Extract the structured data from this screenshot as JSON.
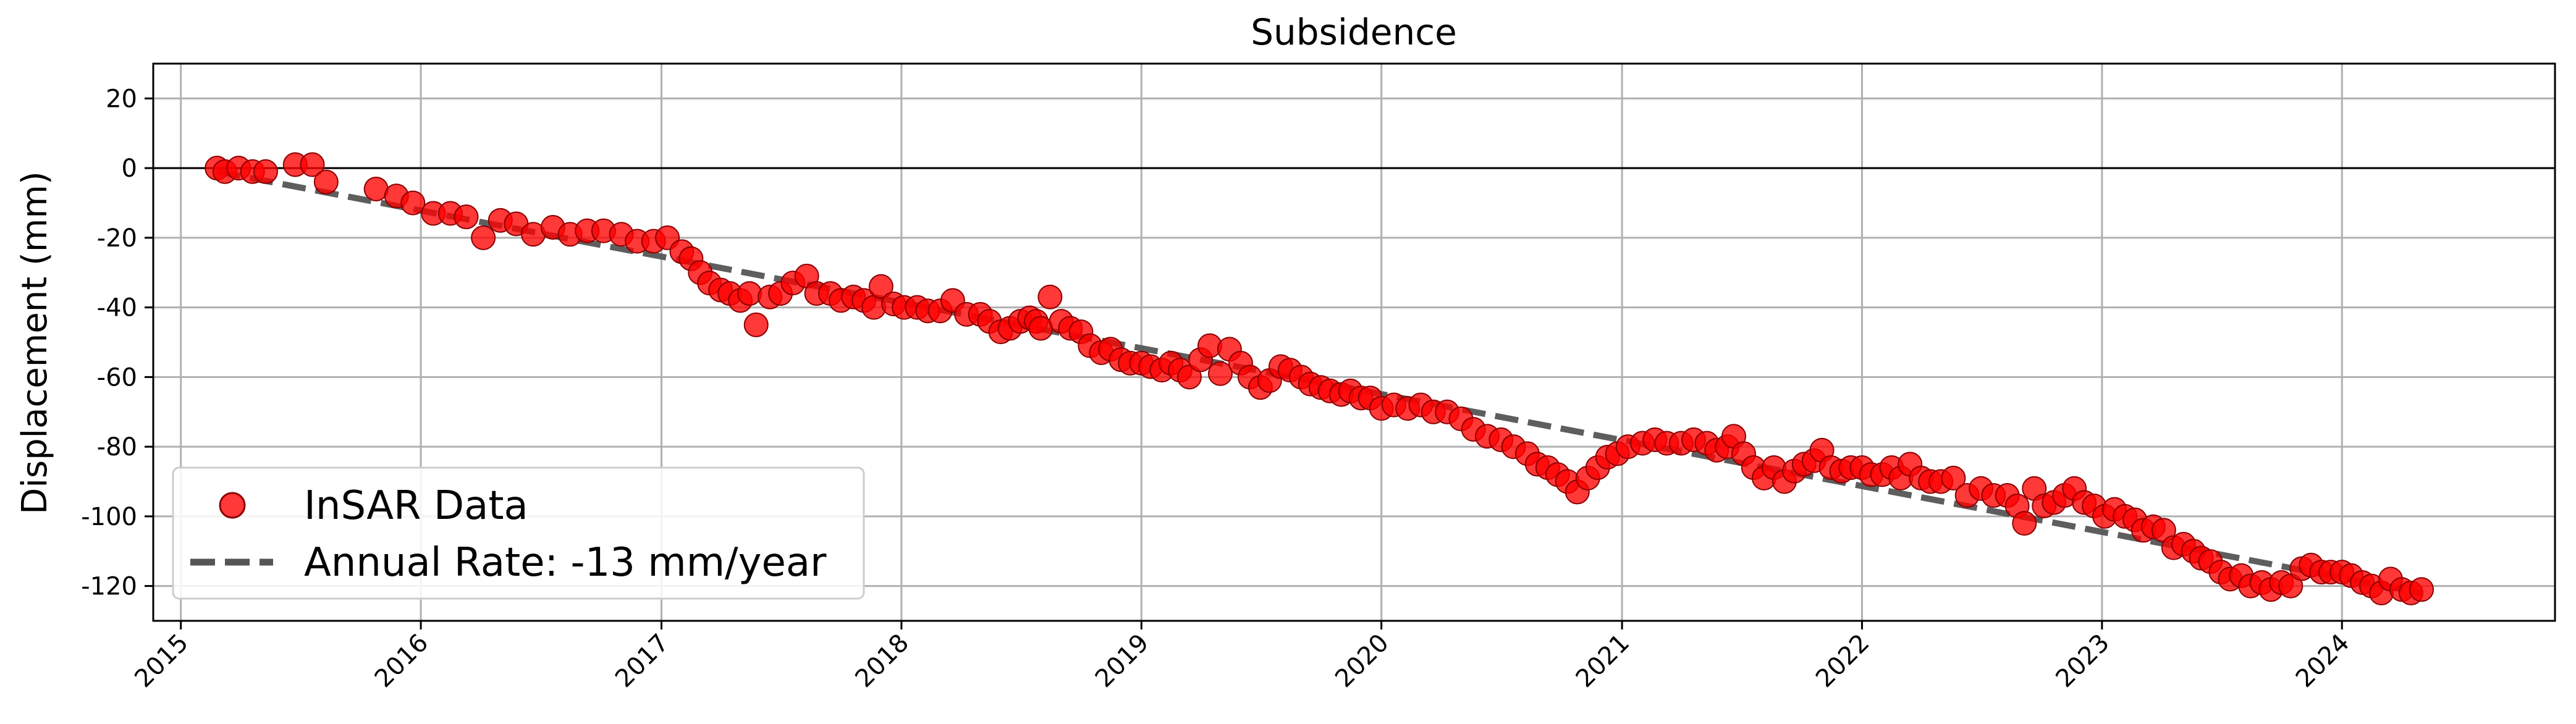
{
  "chart_data": {
    "type": "scatter",
    "title": "Subsidence",
    "xlabel": "",
    "ylabel": "Displacement (mm)",
    "x_type": "date",
    "xlim": [
      "2014-11-20",
      "2024-11-20"
    ],
    "ylim": [
      -130,
      30
    ],
    "x_ticks": [
      "2015",
      "2016",
      "2017",
      "2018",
      "2019",
      "2020",
      "2021",
      "2022",
      "2023",
      "2024"
    ],
    "y_ticks": [
      20,
      0,
      -20,
      -40,
      -60,
      -80,
      -100,
      -120
    ],
    "grid": true,
    "zero_line": true,
    "legend_position": "lower-left",
    "colors": {
      "points": "#ff0000",
      "point_edge": "#8b0000",
      "trend": "#555555",
      "grid": "#b0b0b0"
    },
    "series": [
      {
        "name": "InSAR Data",
        "kind": "scatter",
        "points": [
          [
            "2015-02-25",
            0
          ],
          [
            "2015-03-09",
            -1
          ],
          [
            "2015-03-30",
            0
          ],
          [
            "2015-04-20",
            -1
          ],
          [
            "2015-05-10",
            -1
          ],
          [
            "2015-06-24",
            1
          ],
          [
            "2015-07-20",
            1
          ],
          [
            "2015-08-10",
            -4
          ],
          [
            "2015-10-25",
            -6
          ],
          [
            "2015-11-25",
            -8
          ],
          [
            "2015-12-20",
            -10
          ],
          [
            "2016-01-20",
            -13
          ],
          [
            "2016-02-15",
            -13
          ],
          [
            "2016-03-10",
            -14
          ],
          [
            "2016-04-05",
            -20
          ],
          [
            "2016-05-01",
            -15
          ],
          [
            "2016-05-25",
            -16
          ],
          [
            "2016-06-20",
            -19
          ],
          [
            "2016-07-20",
            -17
          ],
          [
            "2016-08-15",
            -19
          ],
          [
            "2016-09-10",
            -18
          ],
          [
            "2016-10-05",
            -18
          ],
          [
            "2016-11-01",
            -19
          ],
          [
            "2016-11-25",
            -21
          ],
          [
            "2016-12-20",
            -21
          ],
          [
            "2017-01-10",
            -20
          ],
          [
            "2017-02-01",
            -24
          ],
          [
            "2017-02-15",
            -26
          ],
          [
            "2017-03-01",
            -30
          ],
          [
            "2017-03-15",
            -33
          ],
          [
            "2017-04-01",
            -35
          ],
          [
            "2017-04-15",
            -36
          ],
          [
            "2017-05-01",
            -38
          ],
          [
            "2017-05-15",
            -36
          ],
          [
            "2017-05-25",
            -45
          ],
          [
            "2017-06-15",
            -37
          ],
          [
            "2017-07-01",
            -36
          ],
          [
            "2017-07-20",
            -33
          ],
          [
            "2017-08-10",
            -31
          ],
          [
            "2017-08-25",
            -36
          ],
          [
            "2017-09-15",
            -36
          ],
          [
            "2017-10-01",
            -38
          ],
          [
            "2017-10-20",
            -37
          ],
          [
            "2017-11-05",
            -38
          ],
          [
            "2017-11-20",
            -40
          ],
          [
            "2017-12-01",
            -34
          ],
          [
            "2017-12-20",
            -39
          ],
          [
            "2018-01-05",
            -40
          ],
          [
            "2018-01-25",
            -40
          ],
          [
            "2018-02-10",
            -41
          ],
          [
            "2018-03-01",
            -41
          ],
          [
            "2018-03-20",
            -38
          ],
          [
            "2018-04-10",
            -42
          ],
          [
            "2018-05-01",
            -42
          ],
          [
            "2018-05-15",
            -44
          ],
          [
            "2018-06-01",
            -47
          ],
          [
            "2018-06-15",
            -46
          ],
          [
            "2018-07-01",
            -44
          ],
          [
            "2018-07-15",
            -43
          ],
          [
            "2018-07-25",
            -44
          ],
          [
            "2018-08-01",
            -46
          ],
          [
            "2018-08-15",
            -37
          ],
          [
            "2018-09-01",
            -44
          ],
          [
            "2018-09-15",
            -46
          ],
          [
            "2018-10-01",
            -47
          ],
          [
            "2018-10-15",
            -51
          ],
          [
            "2018-11-01",
            -53
          ],
          [
            "2018-11-15",
            -52
          ],
          [
            "2018-12-01",
            -55
          ],
          [
            "2018-12-15",
            -56
          ],
          [
            "2019-01-01",
            -56
          ],
          [
            "2019-01-15",
            -57
          ],
          [
            "2019-02-01",
            -58
          ],
          [
            "2019-02-15",
            -56
          ],
          [
            "2019-03-01",
            -58
          ],
          [
            "2019-03-15",
            -60
          ],
          [
            "2019-04-01",
            -55
          ],
          [
            "2019-04-15",
            -51
          ],
          [
            "2019-05-01",
            -59
          ],
          [
            "2019-05-15",
            -52
          ],
          [
            "2019-06-01",
            -56
          ],
          [
            "2019-06-15",
            -60
          ],
          [
            "2019-07-01",
            -63
          ],
          [
            "2019-07-15",
            -61
          ],
          [
            "2019-08-01",
            -57
          ],
          [
            "2019-08-15",
            -58
          ],
          [
            "2019-09-01",
            -60
          ],
          [
            "2019-09-15",
            -62
          ],
          [
            "2019-10-01",
            -63
          ],
          [
            "2019-10-15",
            -64
          ],
          [
            "2019-11-01",
            -65
          ],
          [
            "2019-11-15",
            -64
          ],
          [
            "2019-12-01",
            -66
          ],
          [
            "2019-12-15",
            -66
          ],
          [
            "2020-01-01",
            -69
          ],
          [
            "2020-01-20",
            -68
          ],
          [
            "2020-02-10",
            -69
          ],
          [
            "2020-03-01",
            -68
          ],
          [
            "2020-03-20",
            -70
          ],
          [
            "2020-04-10",
            -70
          ],
          [
            "2020-05-01",
            -72
          ],
          [
            "2020-05-20",
            -75
          ],
          [
            "2020-06-10",
            -77
          ],
          [
            "2020-07-01",
            -78
          ],
          [
            "2020-07-20",
            -80
          ],
          [
            "2020-08-10",
            -82
          ],
          [
            "2020-08-25",
            -85
          ],
          [
            "2020-09-10",
            -86
          ],
          [
            "2020-09-25",
            -88
          ],
          [
            "2020-10-10",
            -90
          ],
          [
            "2020-10-25",
            -93
          ],
          [
            "2020-11-10",
            -89
          ],
          [
            "2020-11-25",
            -86
          ],
          [
            "2020-12-10",
            -83
          ],
          [
            "2020-12-25",
            -82
          ],
          [
            "2021-01-10",
            -80
          ],
          [
            "2021-02-01",
            -79
          ],
          [
            "2021-02-20",
            -78
          ],
          [
            "2021-03-10",
            -79
          ],
          [
            "2021-04-01",
            -79
          ],
          [
            "2021-04-20",
            -78
          ],
          [
            "2021-05-10",
            -79
          ],
          [
            "2021-05-25",
            -81
          ],
          [
            "2021-06-10",
            -80
          ],
          [
            "2021-06-20",
            -77
          ],
          [
            "2021-07-05",
            -82
          ],
          [
            "2021-07-20",
            -86
          ],
          [
            "2021-08-05",
            -89
          ],
          [
            "2021-08-20",
            -86
          ],
          [
            "2021-09-05",
            -90
          ],
          [
            "2021-09-20",
            -87
          ],
          [
            "2021-10-05",
            -85
          ],
          [
            "2021-10-20",
            -84
          ],
          [
            "2021-11-01",
            -81
          ],
          [
            "2021-11-15",
            -86
          ],
          [
            "2021-12-01",
            -87
          ],
          [
            "2021-12-15",
            -86
          ],
          [
            "2022-01-01",
            -86
          ],
          [
            "2022-01-15",
            -88
          ],
          [
            "2022-02-01",
            -88
          ],
          [
            "2022-02-15",
            -86
          ],
          [
            "2022-03-01",
            -89
          ],
          [
            "2022-03-15",
            -85
          ],
          [
            "2022-04-01",
            -89
          ],
          [
            "2022-04-15",
            -90
          ],
          [
            "2022-05-01",
            -90
          ],
          [
            "2022-05-20",
            -89
          ],
          [
            "2022-06-10",
            -94
          ],
          [
            "2022-07-01",
            -92
          ],
          [
            "2022-07-20",
            -94
          ],
          [
            "2022-08-10",
            -94
          ],
          [
            "2022-08-25",
            -97
          ],
          [
            "2022-09-05",
            -102
          ],
          [
            "2022-09-20",
            -92
          ],
          [
            "2022-10-05",
            -97
          ],
          [
            "2022-10-20",
            -96
          ],
          [
            "2022-11-05",
            -94
          ],
          [
            "2022-11-20",
            -92
          ],
          [
            "2022-12-05",
            -96
          ],
          [
            "2022-12-20",
            -97
          ],
          [
            "2023-01-05",
            -100
          ],
          [
            "2023-01-20",
            -98
          ],
          [
            "2023-02-05",
            -100
          ],
          [
            "2023-02-20",
            -101
          ],
          [
            "2023-03-05",
            -104
          ],
          [
            "2023-03-20",
            -103
          ],
          [
            "2023-04-05",
            -104
          ],
          [
            "2023-04-20",
            -109
          ],
          [
            "2023-05-05",
            -108
          ],
          [
            "2023-05-20",
            -110
          ],
          [
            "2023-06-01",
            -112
          ],
          [
            "2023-06-15",
            -113
          ],
          [
            "2023-07-01",
            -116
          ],
          [
            "2023-07-15",
            -118
          ],
          [
            "2023-08-01",
            -117
          ],
          [
            "2023-08-15",
            -120
          ],
          [
            "2023-09-01",
            -119
          ],
          [
            "2023-09-15",
            -121
          ],
          [
            "2023-10-01",
            -119
          ],
          [
            "2023-10-15",
            -120
          ],
          [
            "2023-11-01",
            -115
          ],
          [
            "2023-11-15",
            -114
          ],
          [
            "2023-12-01",
            -116
          ],
          [
            "2023-12-15",
            -116
          ],
          [
            "2024-01-01",
            -116
          ],
          [
            "2024-01-15",
            -117
          ],
          [
            "2024-02-01",
            -119
          ],
          [
            "2024-02-15",
            -120
          ],
          [
            "2024-03-01",
            -122
          ],
          [
            "2024-03-15",
            -118
          ],
          [
            "2024-04-01",
            -121
          ],
          [
            "2024-04-15",
            -122
          ],
          [
            "2024-05-01",
            -121
          ]
        ]
      },
      {
        "name": "Annual Rate: -13 mm/year",
        "kind": "line",
        "dashed": true,
        "points": [
          [
            "2015-02-25",
            -1
          ],
          [
            "2024-05-01",
            -122
          ]
        ]
      }
    ]
  }
}
